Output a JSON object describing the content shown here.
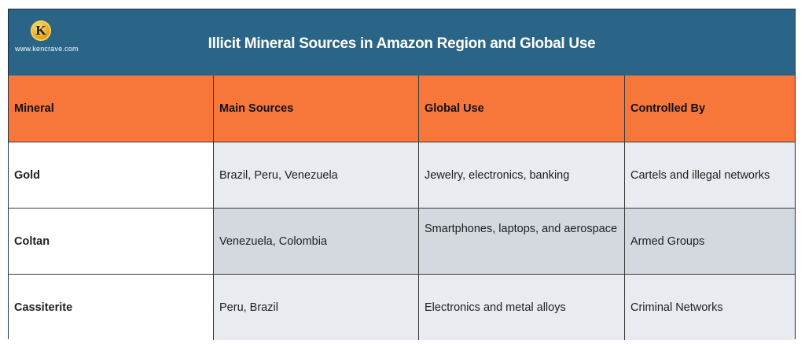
{
  "header": {
    "title": "Illicit Mineral Sources in Amazon Region and  Global Use",
    "logo_letter": "K",
    "website": "www.kencrave.com"
  },
  "table": {
    "columns": [
      "Mineral",
      "Main Sources",
      "Global Use",
      "Controlled By"
    ],
    "rows": [
      [
        "Gold",
        "Brazil, Peru, Venezuela",
        "Jewelry, electronics, banking",
        "Cartels and illegal networks"
      ],
      [
        "Coltan",
        "Venezuela, Colombia",
        "Smartphones, laptops, and aerospace",
        "Armed Groups"
      ],
      [
        "Cassiterite",
        "Peru, Brazil",
        "Electronics and metal alloys",
        "Criminal Networks"
      ]
    ]
  },
  "colors": {
    "banner": "#2a6587",
    "header_row": "#f7773a",
    "row_light": "#e8ebef",
    "row_dark": "#d4d9e0"
  }
}
